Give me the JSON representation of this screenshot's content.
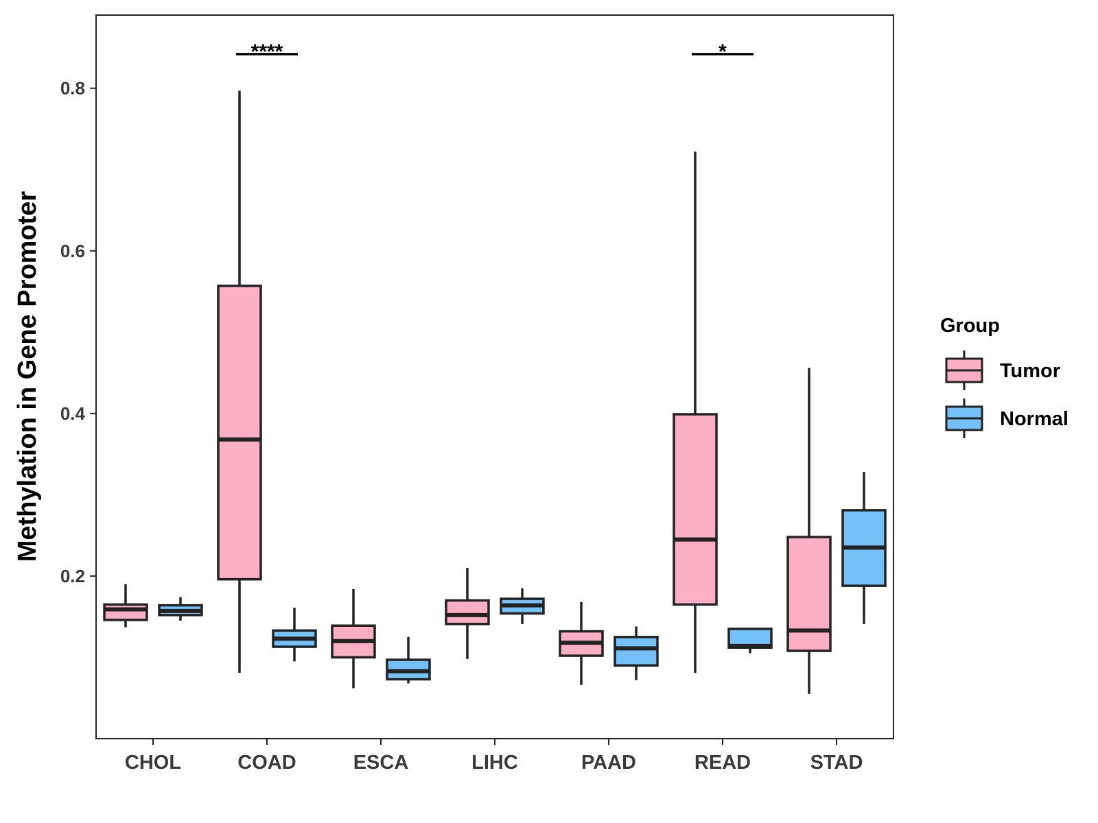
{
  "chart_data": {
    "type": "boxplot",
    "title": "",
    "xlabel": "",
    "ylabel": "Methylation in Gene Promoter",
    "ylim": [
      0.0,
      0.89
    ],
    "yticks": [
      0.2,
      0.4,
      0.6,
      0.8
    ],
    "ytick_labels": [
      "0.2",
      "0.4",
      "0.6",
      "0.8"
    ],
    "categories": [
      "CHOL",
      "COAD",
      "ESCA",
      "LIHC",
      "PAAD",
      "READ",
      "STAD"
    ],
    "grid": false,
    "legend": {
      "title": "Group",
      "position": "right",
      "items": [
        {
          "name": "Tumor",
          "color": "#FBAFC4"
        },
        {
          "name": "Normal",
          "color": "#74C0F8"
        }
      ]
    },
    "series": [
      {
        "name": "Tumor",
        "color": "#FBAFC4",
        "boxes": [
          {
            "category": "CHOL",
            "min": 0.137,
            "q1": 0.146,
            "median": 0.159,
            "q3": 0.165,
            "max": 0.19
          },
          {
            "category": "COAD",
            "min": 0.081,
            "q1": 0.196,
            "median": 0.368,
            "q3": 0.557,
            "max": 0.797
          },
          {
            "category": "ESCA",
            "min": 0.062,
            "q1": 0.1,
            "median": 0.12,
            "q3": 0.139,
            "max": 0.184
          },
          {
            "category": "LIHC",
            "min": 0.098,
            "q1": 0.141,
            "median": 0.152,
            "q3": 0.17,
            "max": 0.21
          },
          {
            "category": "PAAD",
            "min": 0.066,
            "q1": 0.102,
            "median": 0.118,
            "q3": 0.132,
            "max": 0.168
          },
          {
            "category": "READ",
            "min": 0.081,
            "q1": 0.165,
            "median": 0.245,
            "q3": 0.399,
            "max": 0.722
          },
          {
            "category": "STAD",
            "min": 0.055,
            "q1": 0.108,
            "median": 0.133,
            "q3": 0.248,
            "max": 0.456
          }
        ]
      },
      {
        "name": "Normal",
        "color": "#74C0F8",
        "boxes": [
          {
            "category": "CHOL",
            "min": 0.145,
            "q1": 0.152,
            "median": 0.157,
            "q3": 0.164,
            "max": 0.174
          },
          {
            "category": "COAD",
            "min": 0.095,
            "q1": 0.113,
            "median": 0.123,
            "q3": 0.133,
            "max": 0.161
          },
          {
            "category": "ESCA",
            "min": 0.068,
            "q1": 0.073,
            "median": 0.083,
            "q3": 0.097,
            "max": 0.125
          },
          {
            "category": "LIHC",
            "min": 0.141,
            "q1": 0.154,
            "median": 0.164,
            "q3": 0.172,
            "max": 0.185
          },
          {
            "category": "PAAD",
            "min": 0.072,
            "q1": 0.09,
            "median": 0.111,
            "q3": 0.125,
            "max": 0.138
          },
          {
            "category": "READ",
            "min": 0.105,
            "q1": 0.112,
            "median": 0.114,
            "q3": 0.135,
            "max": 0.135
          },
          {
            "category": "STAD",
            "min": 0.141,
            "q1": 0.188,
            "median": 0.235,
            "q3": 0.281,
            "max": 0.328
          }
        ]
      }
    ],
    "annotations": [
      {
        "category": "COAD",
        "label": "****",
        "y": 0.842
      },
      {
        "category": "READ",
        "label": "*",
        "y": 0.842
      }
    ]
  }
}
